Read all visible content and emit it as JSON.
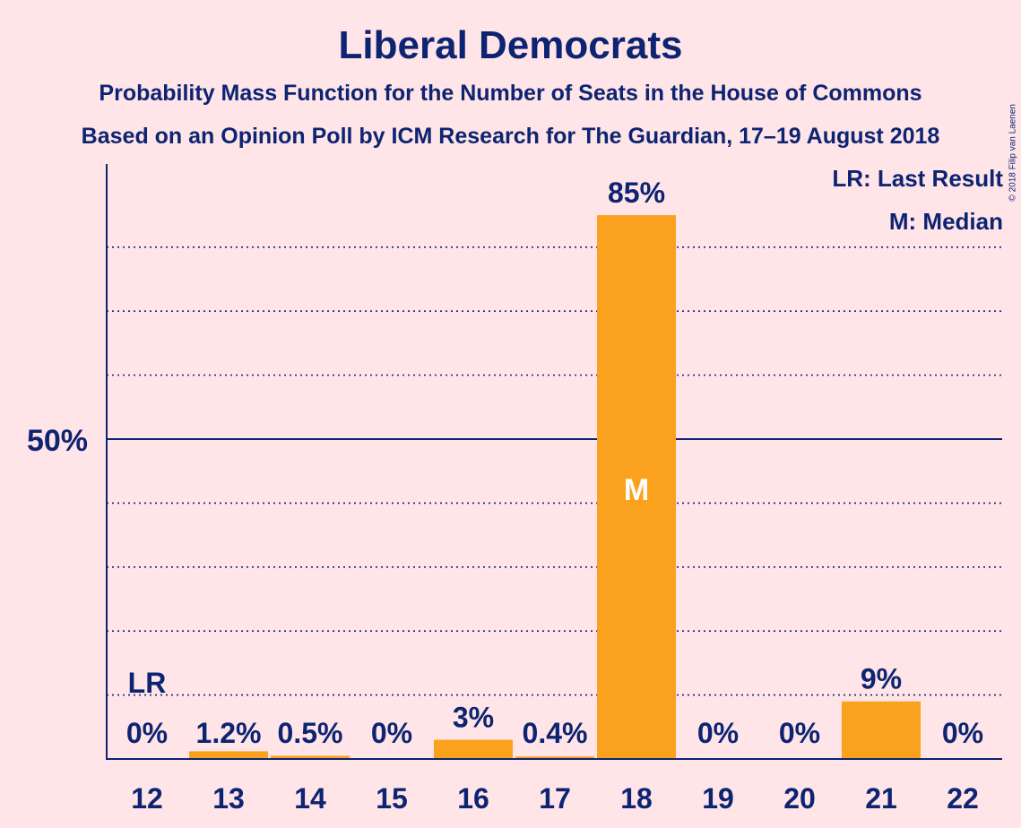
{
  "chart_data": {
    "type": "bar",
    "title": "Liberal Democrats",
    "subtitle": "Probability Mass Function for the Number of Seats in the House of Commons",
    "subtitle2": "Based on an Opinion Poll by ICM Research for The Guardian, 17–19 August 2018",
    "copyright": "© 2018 Filip van Laenen",
    "categories": [
      "12",
      "13",
      "14",
      "15",
      "16",
      "17",
      "18",
      "19",
      "20",
      "21",
      "22"
    ],
    "values": [
      0,
      1.2,
      0.5,
      0,
      3,
      0.4,
      85,
      0,
      0,
      9,
      0
    ],
    "data_labels": [
      "0%",
      "1.2%",
      "0.5%",
      "0%",
      "3%",
      "0.4%",
      "85%",
      "0%",
      "0%",
      "9%",
      "0%"
    ],
    "ylim": [
      0,
      93
    ],
    "y_tick_label": "50%",
    "y_tick_value": 50,
    "gridlines": [
      10,
      20,
      30,
      40,
      60,
      70,
      80
    ],
    "last_result_index": 0,
    "last_result_label": "LR",
    "median_index": 6,
    "median_label": "M",
    "legend": [
      "LR: Last Result",
      "M: Median"
    ],
    "bar_color": "#FAA21E",
    "text_color": "#0D2472",
    "background": "#FFE5E8"
  }
}
